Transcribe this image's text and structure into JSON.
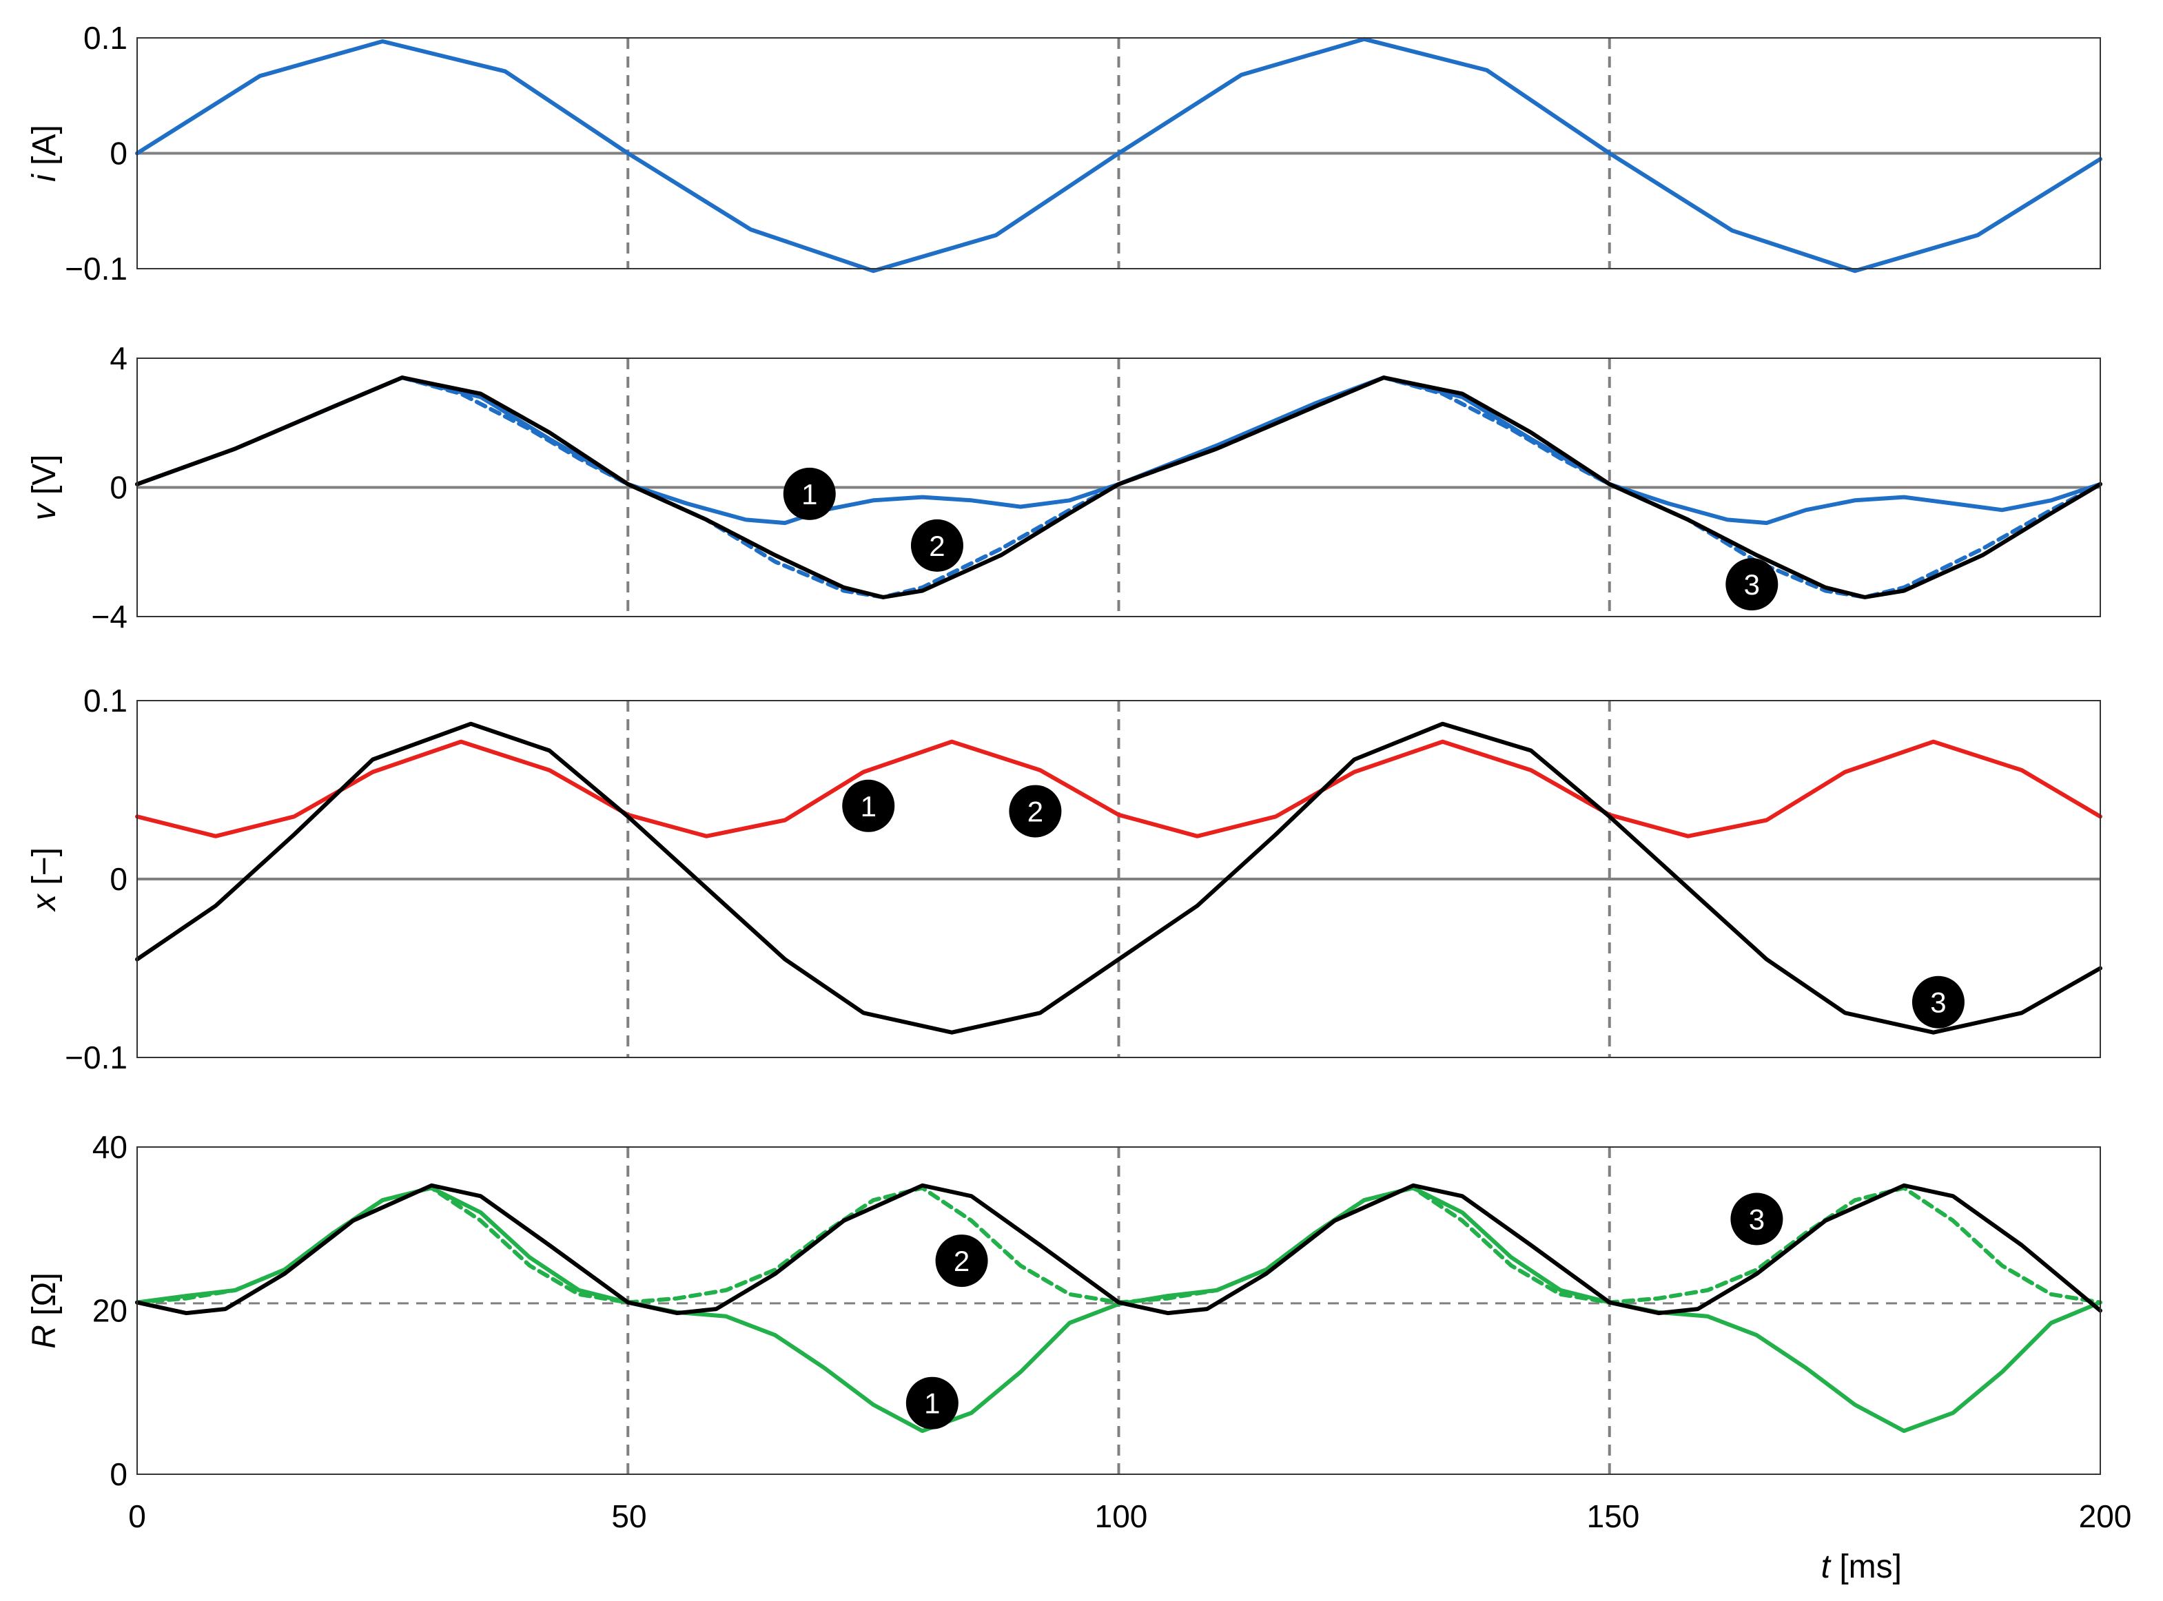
{
  "colors": {
    "blue": "#1f6fc6",
    "black": "#000000",
    "red": "#e8211c",
    "green": "#22b04a",
    "grid": "#808080",
    "marker_bg": "#000000",
    "marker_fg": "#ffffff"
  },
  "chart_data": [
    {
      "type": "line",
      "id": "current",
      "ylabel_var": "i",
      "ylabel_unit": " [A]",
      "xlim": [
        0,
        200
      ],
      "ylim": [
        -0.1,
        0.1
      ],
      "yticks": [
        0.1,
        0,
        -0.1
      ],
      "ytick_labels": [
        "0.1",
        "0",
        "−0.1"
      ],
      "vlines": [
        50,
        100,
        150
      ],
      "hline": 0,
      "series": [
        {
          "color": "blue",
          "dash": false,
          "x": [
            0,
            12.5,
            25,
            37.5,
            50,
            62.5,
            75,
            87.5,
            100,
            112.5,
            125,
            137.5,
            150,
            162.5,
            175,
            187.5,
            200
          ],
          "y": [
            0,
            0.067,
            0.097,
            0.071,
            0,
            -0.066,
            -0.102,
            -0.071,
            0,
            0.068,
            0.099,
            0.072,
            0,
            -0.067,
            -0.102,
            -0.071,
            -0.005
          ]
        }
      ],
      "markers": []
    },
    {
      "type": "line",
      "id": "voltage",
      "ylabel_var": "v",
      "ylabel_unit": " [V]",
      "xlim": [
        0,
        200
      ],
      "ylim": [
        -4,
        4
      ],
      "yticks": [
        4,
        0,
        -4
      ],
      "ytick_labels": [
        "4",
        "0",
        "−4"
      ],
      "vlines": [
        50,
        100,
        150
      ],
      "hline": 0,
      "series": [
        {
          "color": "blue",
          "dash": false,
          "x": [
            0,
            10,
            20,
            27,
            35,
            42,
            50,
            56,
            62,
            66,
            70,
            75,
            80,
            85,
            90,
            95,
            100,
            110,
            120,
            127,
            135,
            142,
            150,
            156,
            162,
            166,
            170,
            175,
            180,
            185,
            190,
            195,
            200
          ],
          "y": [
            0.1,
            1.2,
            2.5,
            3.4,
            2.8,
            1.5,
            0.1,
            -0.5,
            -1.0,
            -1.1,
            -0.7,
            -0.4,
            -0.3,
            -0.4,
            -0.6,
            -0.4,
            0.1,
            1.3,
            2.6,
            3.4,
            2.8,
            1.5,
            0.1,
            -0.5,
            -1.0,
            -1.1,
            -0.7,
            -0.4,
            -0.3,
            -0.5,
            -0.7,
            -0.4,
            0.1
          ]
        },
        {
          "color": "blue",
          "dash": true,
          "x": [
            0,
            10,
            20,
            27,
            33,
            40,
            45,
            50,
            58,
            65,
            72,
            76,
            80,
            88,
            95,
            100,
            110,
            120,
            127,
            133,
            140,
            145,
            150,
            158,
            165,
            172,
            176,
            180,
            188,
            195,
            200
          ],
          "y": [
            0.1,
            1.2,
            2.5,
            3.4,
            2.9,
            1.8,
            0.9,
            0.1,
            -1.0,
            -2.3,
            -3.2,
            -3.4,
            -3.1,
            -1.9,
            -0.7,
            0.1,
            1.2,
            2.5,
            3.4,
            2.9,
            1.8,
            0.9,
            0.1,
            -1.0,
            -2.3,
            -3.2,
            -3.4,
            -3.1,
            -1.9,
            -0.7,
            0.1
          ]
        },
        {
          "color": "black",
          "dash": false,
          "x": [
            0,
            10,
            20,
            27,
            35,
            42,
            50,
            58,
            65,
            72,
            76,
            80,
            88,
            95,
            100,
            110,
            120,
            127,
            135,
            142,
            150,
            158,
            165,
            172,
            176,
            180,
            188,
            195,
            200
          ],
          "y": [
            0.1,
            1.2,
            2.5,
            3.4,
            2.9,
            1.7,
            0.1,
            -1.0,
            -2.1,
            -3.1,
            -3.4,
            -3.2,
            -2.1,
            -0.8,
            0.1,
            1.2,
            2.5,
            3.4,
            2.9,
            1.7,
            0.1,
            -1.0,
            -2.1,
            -3.1,
            -3.4,
            -3.2,
            -2.1,
            -0.8,
            0.1
          ]
        }
      ],
      "markers": [
        {
          "label": "1",
          "x": 68.5,
          "y": -0.2
        },
        {
          "label": "2",
          "x": 81.5,
          "y": -1.8
        },
        {
          "label": "3",
          "x": 164.5,
          "y": -3.0
        }
      ]
    },
    {
      "type": "line",
      "id": "state",
      "ylabel_var": "x",
      "ylabel_unit": " [−]",
      "xlim": [
        0,
        200
      ],
      "ylim": [
        -0.1,
        0.1
      ],
      "yticks": [
        0.1,
        0,
        -0.1
      ],
      "ytick_labels": [
        "0.1",
        "0",
        "−0.1"
      ],
      "vlines": [
        50,
        100,
        150
      ],
      "hline": 0,
      "series": [
        {
          "color": "red",
          "dash": false,
          "x": [
            0,
            8,
            16,
            24,
            33,
            42,
            50,
            58,
            66,
            74,
            83,
            92,
            100,
            108,
            116,
            124,
            133,
            142,
            150,
            158,
            166,
            174,
            183,
            192,
            200
          ],
          "y": [
            0.035,
            0.024,
            0.035,
            0.06,
            0.077,
            0.061,
            0.036,
            0.024,
            0.033,
            0.06,
            0.077,
            0.061,
            0.036,
            0.024,
            0.035,
            0.06,
            0.077,
            0.061,
            0.036,
            0.024,
            0.033,
            0.06,
            0.077,
            0.061,
            0.035
          ]
        },
        {
          "color": "black",
          "dash": false,
          "x": [
            0,
            8,
            16,
            24,
            34,
            42,
            50,
            58,
            66,
            74,
            83,
            92,
            100,
            108,
            116,
            124,
            133,
            142,
            150,
            158,
            166,
            174,
            183,
            192,
            200
          ],
          "y": [
            -0.045,
            -0.015,
            0.025,
            0.067,
            0.087,
            0.072,
            0.035,
            -0.005,
            -0.045,
            -0.075,
            -0.086,
            -0.075,
            -0.045,
            -0.015,
            0.025,
            0.067,
            0.087,
            0.072,
            0.035,
            -0.005,
            -0.045,
            -0.075,
            -0.086,
            -0.075,
            -0.05
          ]
        }
      ],
      "markers": [
        {
          "label": "1",
          "x": 74.5,
          "y": 0.041
        },
        {
          "label": "2",
          "x": 91.5,
          "y": 0.038
        },
        {
          "label": "3",
          "x": 183.5,
          "y": -0.069
        }
      ]
    },
    {
      "type": "line",
      "id": "resistance",
      "ylabel_var": "R",
      "ylabel_unit": " [Ω]",
      "xlim": [
        0,
        200
      ],
      "ylim": [
        0,
        40
      ],
      "yticks": [
        40,
        20,
        0
      ],
      "ytick_labels": [
        "40",
        "20",
        "0"
      ],
      "vlines": [
        50,
        100,
        150
      ],
      "hline": 20.9,
      "series": [
        {
          "color": "green",
          "dash": false,
          "x": [
            0,
            5,
            10,
            15,
            20,
            25,
            30,
            35,
            40,
            45,
            50,
            55,
            60,
            65,
            70,
            75,
            80,
            85,
            90,
            95,
            100,
            105,
            110,
            115,
            120,
            125,
            130,
            135,
            140,
            145,
            150,
            155,
            160,
            165,
            170,
            175,
            180,
            185,
            190,
            195,
            200
          ],
          "y": [
            21,
            21.8,
            22.5,
            25,
            29.5,
            33.5,
            35,
            32,
            26.5,
            22.5,
            21,
            19.8,
            19.3,
            17,
            13,
            8.5,
            5.3,
            7.5,
            12.5,
            18.5,
            20.8,
            21.8,
            22.5,
            25,
            29.5,
            33.5,
            35,
            32,
            26.5,
            22.5,
            21,
            19.8,
            19.3,
            17,
            13,
            8.5,
            5.3,
            7.5,
            12.5,
            18.5,
            21
          ]
        },
        {
          "color": "green",
          "dash": true,
          "x": [
            0,
            5,
            10,
            15,
            20,
            25,
            30,
            35,
            40,
            45,
            50,
            55,
            60,
            65,
            70,
            75,
            80,
            85,
            90,
            95,
            100,
            105,
            110,
            115,
            120,
            125,
            130,
            135,
            140,
            145,
            150,
            155,
            160,
            165,
            170,
            175,
            180,
            185,
            190,
            195,
            200
          ],
          "y": [
            21,
            21.5,
            22.5,
            25,
            29.5,
            33.5,
            35,
            31,
            25.5,
            22,
            21,
            21.5,
            22.5,
            25,
            29.5,
            33.5,
            35,
            31,
            25.5,
            22,
            21,
            21.5,
            22.5,
            25,
            29.5,
            33.5,
            35,
            31,
            25.5,
            22,
            21,
            21.5,
            22.5,
            25,
            29.5,
            33.5,
            35,
            31,
            25.5,
            22,
            21
          ]
        },
        {
          "color": "black",
          "dash": false,
          "x": [
            0,
            5,
            9,
            15,
            22,
            30,
            35,
            42,
            50,
            55,
            59,
            65,
            72,
            80,
            85,
            92,
            100,
            105,
            109,
            115,
            122,
            130,
            135,
            142,
            150,
            155,
            159,
            165,
            172,
            180,
            185,
            192,
            200
          ],
          "y": [
            21,
            19.7,
            20.2,
            24.5,
            31,
            35.3,
            34,
            28,
            21,
            19.7,
            20.2,
            24.5,
            31,
            35.3,
            34,
            28,
            21,
            19.7,
            20.2,
            24.5,
            31,
            35.3,
            34,
            28,
            21,
            19.7,
            20.2,
            24.5,
            31,
            35.3,
            34,
            28,
            20
          ]
        }
      ],
      "markers": [
        {
          "label": "1",
          "x": 81,
          "y": 8.7
        },
        {
          "label": "2",
          "x": 84,
          "y": 26.1
        },
        {
          "label": "3",
          "x": 165,
          "y": 31.2
        }
      ]
    }
  ],
  "x_axis": {
    "ticks": [
      0,
      50,
      100,
      150,
      200
    ],
    "tick_labels": [
      "0",
      "50",
      "100",
      "150",
      "200"
    ],
    "label_var": "t",
    "label_unit": " [ms]"
  }
}
